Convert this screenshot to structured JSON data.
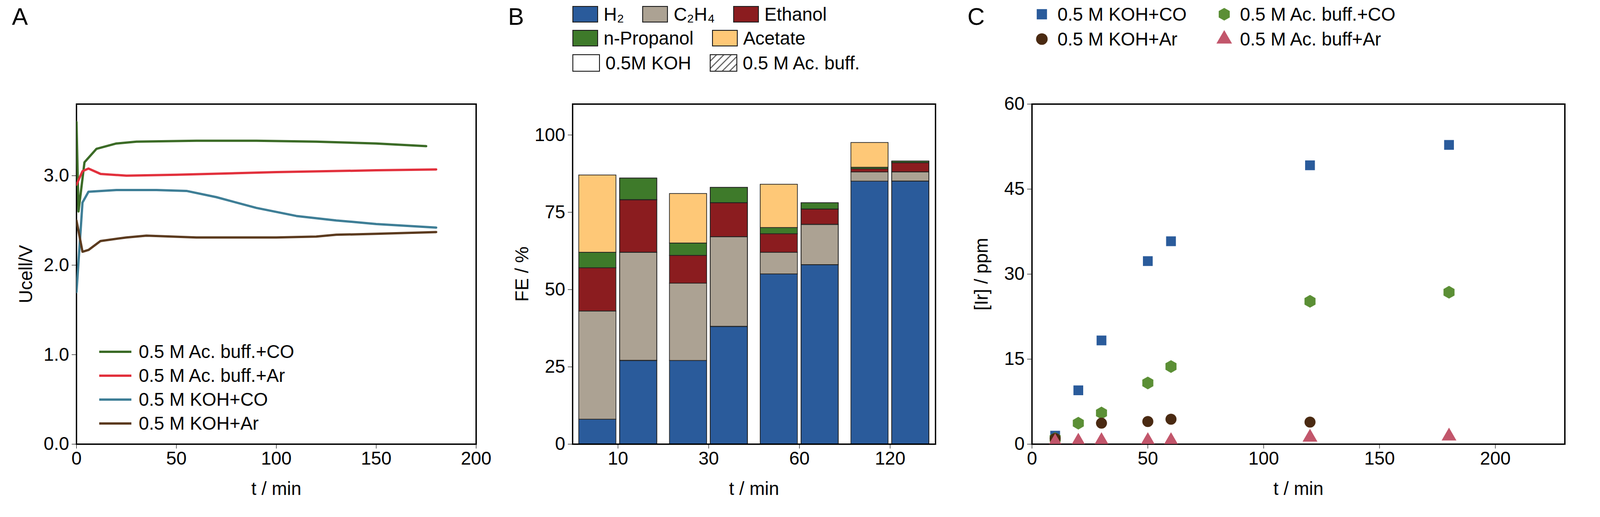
{
  "chart_data": [
    {
      "type": "line",
      "panel_label": "A",
      "x_label": "t / min",
      "y_label": "Ucell/V",
      "xlim": [
        0,
        200
      ],
      "xticks": [
        0,
        50,
        100,
        150,
        200
      ],
      "ylim": [
        0,
        3.8
      ],
      "yticks": [
        0,
        1,
        2,
        3
      ],
      "legend": "bottom-left",
      "series": [
        {
          "name": "0.5 M Ac. buff.+CO",
          "color": "#3b6b26",
          "x": [
            0,
            1,
            4,
            10,
            20,
            30,
            60,
            90,
            120,
            150,
            175
          ],
          "values": [
            3.6,
            2.6,
            3.15,
            3.3,
            3.36,
            3.38,
            3.39,
            3.39,
            3.38,
            3.36,
            3.33
          ]
        },
        {
          "name": "0.5 M Ac. buff.+Ar",
          "color": "#e2303c",
          "x": [
            0,
            3,
            6,
            12,
            25,
            50,
            100,
            150,
            180
          ],
          "values": [
            2.9,
            3.05,
            3.08,
            3.02,
            3.0,
            3.01,
            3.04,
            3.06,
            3.07
          ]
        },
        {
          "name": "0.5 M KOH+CO",
          "color": "#3e7e96",
          "x": [
            0,
            3,
            6,
            20,
            40,
            55,
            70,
            90,
            110,
            130,
            150,
            180
          ],
          "values": [
            1.7,
            2.7,
            2.82,
            2.84,
            2.84,
            2.83,
            2.76,
            2.64,
            2.55,
            2.5,
            2.46,
            2.42
          ]
        },
        {
          "name": "0.5 M KOH+Ar",
          "color": "#5b3a1e",
          "x": [
            0,
            3,
            6,
            12,
            25,
            35,
            60,
            100,
            120,
            130,
            150,
            180
          ],
          "values": [
            2.5,
            2.15,
            2.17,
            2.27,
            2.31,
            2.33,
            2.31,
            2.31,
            2.32,
            2.34,
            2.35,
            2.37
          ]
        }
      ]
    },
    {
      "type": "bar",
      "stacked": true,
      "panel_label": "B",
      "x_label": "t / min",
      "y_label": "FE / %",
      "categories": [
        "10",
        "30",
        "60",
        "120"
      ],
      "groups": [
        "0.5M KOH",
        "0.5 M Ac. buff."
      ],
      "ylim": [
        0,
        110
      ],
      "yticks": [
        0,
        25,
        50,
        75,
        100
      ],
      "legend": "top",
      "series": [
        {
          "name": "H₂",
          "color": "#2a5b9b",
          "values": [
            [
              8,
              27,
              55,
              85
            ],
            [
              27,
              38,
              58,
              85
            ]
          ]
        },
        {
          "name": "C₂H₄",
          "color": "#aca293",
          "values": [
            [
              35,
              25,
              7,
              3
            ],
            [
              35,
              29,
              13,
              3
            ]
          ]
        },
        {
          "name": "Ethanol",
          "color": "#8b1c1f",
          "values": [
            [
              14,
              9,
              6,
              1
            ],
            [
              17,
              11,
              5,
              3
            ]
          ]
        },
        {
          "name": "n-Propanol",
          "color": "#3e7a2a",
          "values": [
            [
              5,
              4,
              2,
              0.5
            ],
            [
              7,
              5,
              2,
              0.5
            ]
          ]
        },
        {
          "name": "Acetate",
          "color": "#fec877",
          "values": [
            [
              25,
              16,
              14,
              8
            ],
            [
              0,
              0,
              0,
              0
            ]
          ]
        }
      ]
    },
    {
      "type": "scatter",
      "panel_label": "C",
      "x_label": "t / min",
      "y_label": "[Ir] / ppm",
      "xlim": [
        0,
        230
      ],
      "xticks": [
        0,
        50,
        100,
        150,
        200
      ],
      "ylim": [
        0,
        60
      ],
      "yticks": [
        0,
        15,
        30,
        45,
        60
      ],
      "legend": "top",
      "series": [
        {
          "name": "0.5 M KOH+CO",
          "color": "#2a5b9b",
          "marker": "square",
          "x": [
            10,
            20,
            30,
            50,
            60,
            120,
            180
          ],
          "values": [
            1.5,
            9.5,
            18.3,
            32.3,
            35.8,
            49.2,
            52.8
          ]
        },
        {
          "name": "0.5 M Ac. buff.+CO",
          "color": "#5b8f35",
          "marker": "hexagon",
          "x": [
            10,
            20,
            30,
            50,
            60,
            120,
            180
          ],
          "values": [
            1.0,
            3.7,
            5.5,
            10.8,
            13.7,
            25.2,
            26.8
          ]
        },
        {
          "name": "0.5 M KOH+Ar",
          "color": "#4a2a12",
          "marker": "circle",
          "x": [
            10,
            30,
            50,
            60,
            120
          ],
          "values": [
            1.0,
            3.7,
            4.0,
            4.4,
            3.9
          ]
        },
        {
          "name": "0.5 M Ac. buff+Ar",
          "color": "#c2566b",
          "marker": "triangle",
          "x": [
            10,
            20,
            30,
            50,
            60,
            120,
            180
          ],
          "values": [
            0.4,
            0.5,
            0.6,
            0.6,
            0.6,
            1.2,
            1.4
          ]
        }
      ]
    }
  ]
}
